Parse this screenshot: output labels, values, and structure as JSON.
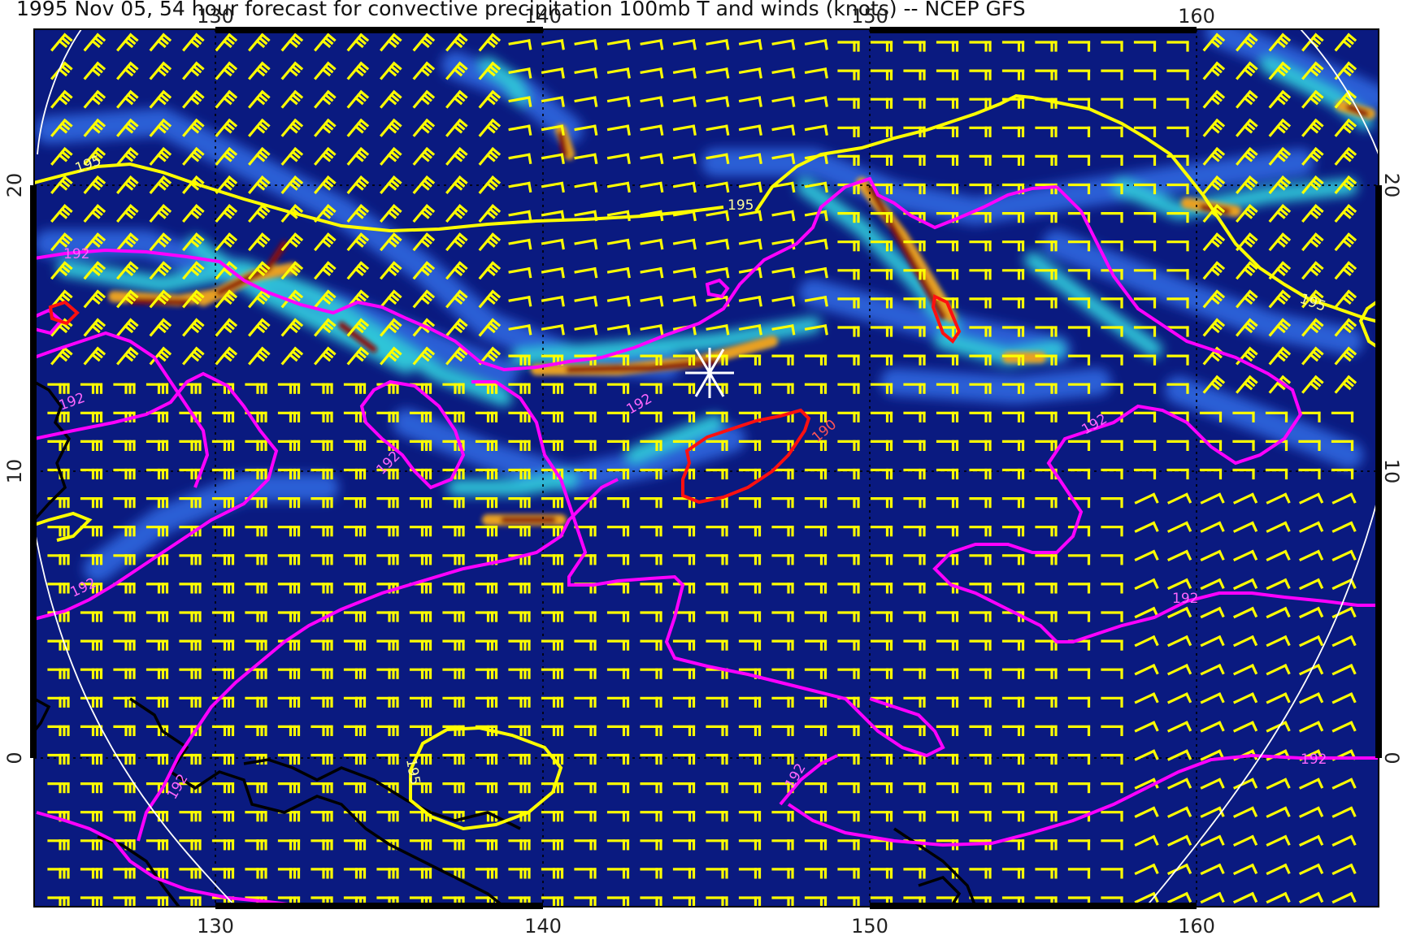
{
  "title": "1995 Nov 05, 54 hour forecast for convective precipitation 100mb T and winds (knots) -- NCEP GFS",
  "axes": {
    "lon_ticks": [
      "130",
      "140",
      "150",
      "160"
    ],
    "lat_ticks_left": [
      "20",
      "10",
      "0"
    ],
    "lat_ticks_right": [
      "20",
      "10",
      "0"
    ],
    "lon_range": [
      124.5,
      166
    ],
    "lat_range": [
      -5,
      25
    ]
  },
  "contours": {
    "temp_195_label": "195",
    "temp_192_label": "192",
    "temp_190_label": "190"
  },
  "colors": {
    "background": "#0a1a80",
    "precip_light": "#2a5fd6",
    "precip_mid": "#2fc4d8",
    "precip_high": "#e8a020",
    "precip_max": "#8a0a0a",
    "contour_195": "#ffff00",
    "contour_192": "#ff00ff",
    "contour_190": "#ff1010",
    "wind_barb": "#ffff00",
    "coastline": "#000000",
    "marker": "#ffffff"
  },
  "marker": {
    "lon": 145,
    "lat": 13.3,
    "icon": "star-marker-icon"
  }
}
